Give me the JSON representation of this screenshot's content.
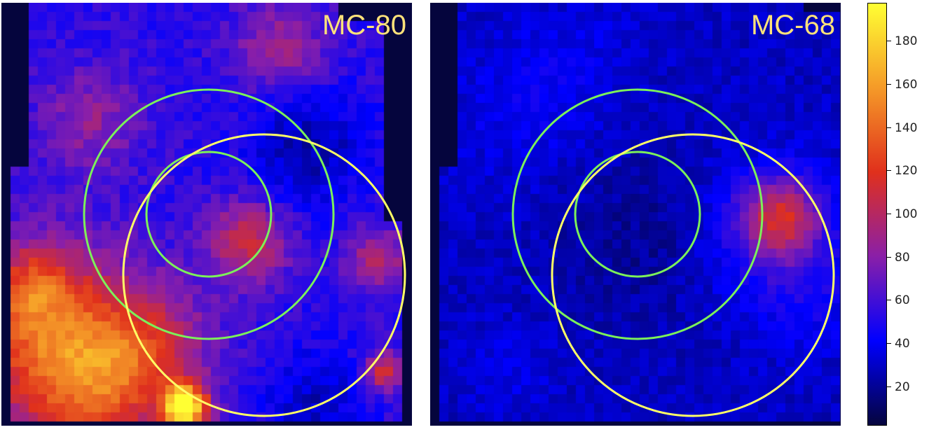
{
  "chart_data": [
    {
      "type": "heatmap",
      "title": "MC-80",
      "title_color": "#ffe27a",
      "colormap": [
        "#05053d",
        "#0000ff",
        "#8a1fa8",
        "#e0301c",
        "#f59a28",
        "#ffff33"
      ],
      "circles": [
        {
          "color": "#7cf05a",
          "shape": "circle"
        },
        {
          "color": "#7cf05a",
          "shape": "circle"
        },
        {
          "color": "#ffff66",
          "shape": "circle"
        }
      ]
    },
    {
      "type": "heatmap",
      "title": "MC-68",
      "title_color": "#ffe27a",
      "colormap": [
        "#05053d",
        "#0000ff",
        "#8a1fa8",
        "#e0301c",
        "#f59a28",
        "#ffff33"
      ],
      "circles": [
        {
          "color": "#7cf05a",
          "shape": "circle"
        },
        {
          "color": "#7cf05a",
          "shape": "circle"
        },
        {
          "color": "#ffff66",
          "shape": "circle"
        }
      ]
    }
  ],
  "colorbar": {
    "ticks": [
      "20",
      "40",
      "60",
      "80",
      "100",
      "120",
      "140",
      "160",
      "180"
    ],
    "range": [
      2,
      198
    ],
    "colors": [
      "#05053d",
      "#0000ff",
      "#8a1fa8",
      "#e0301c",
      "#f59a28",
      "#ffff33"
    ]
  }
}
